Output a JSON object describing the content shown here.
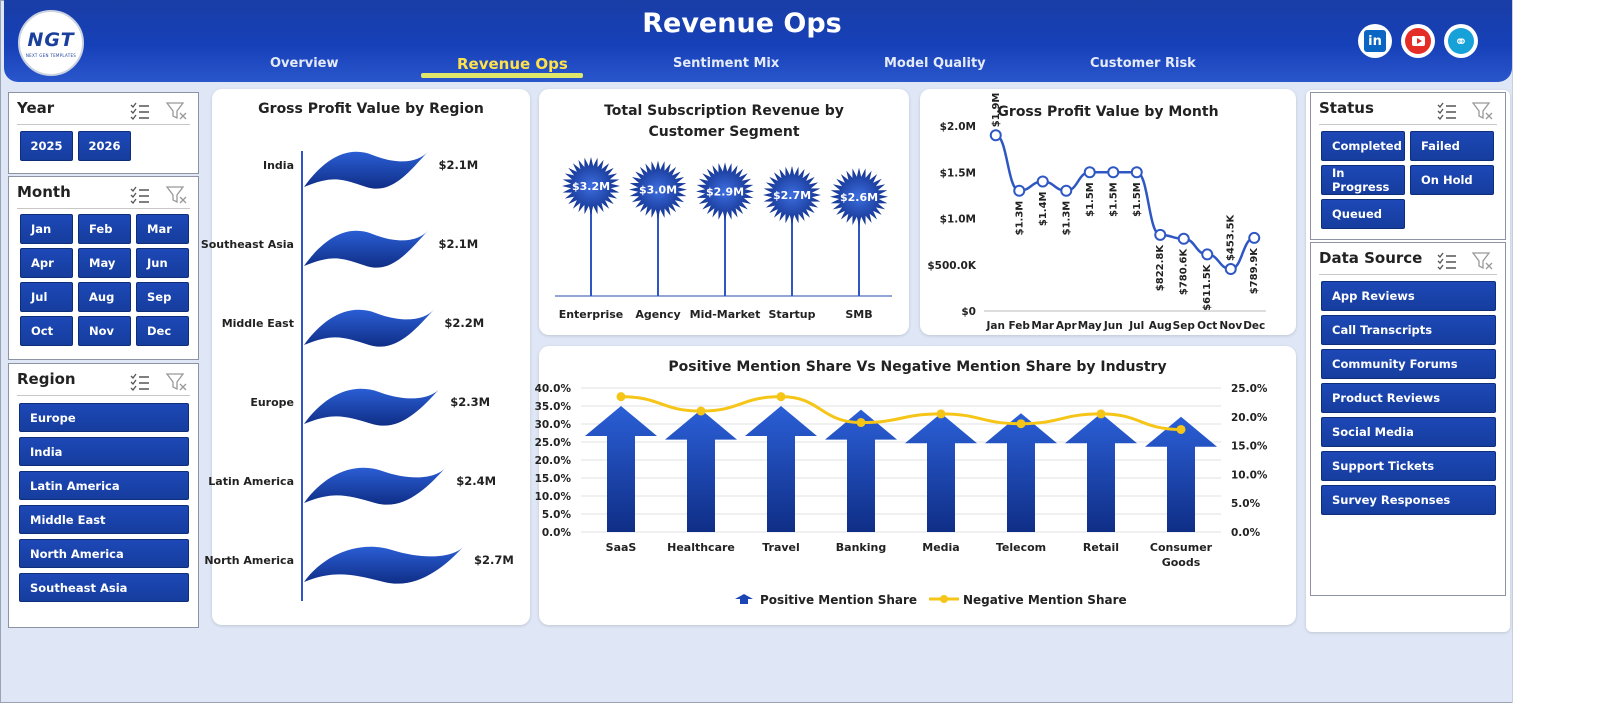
{
  "header": {
    "title": "Revenue Ops",
    "logo_text": "NGT",
    "logo_sub": "NEXT GEN TEMPLATES",
    "nav": [
      "Overview",
      "Revenue Ops",
      "Sentiment Mix",
      "Model Quality",
      "Customer Risk"
    ],
    "active_nav": "Revenue Ops",
    "social": [
      {
        "name": "linkedin-icon",
        "label": "in"
      },
      {
        "name": "youtube-icon"
      },
      {
        "name": "globe-icon"
      }
    ]
  },
  "slicers": {
    "year": {
      "title": "Year",
      "items": [
        "2025",
        "2026"
      ]
    },
    "month": {
      "title": "Month",
      "items": [
        "Jan",
        "Feb",
        "Mar",
        "Apr",
        "May",
        "Jun",
        "Jul",
        "Aug",
        "Sep",
        "Oct",
        "Nov",
        "Dec"
      ]
    },
    "region": {
      "title": "Region",
      "items": [
        "Europe",
        "India",
        "Latin America",
        "Middle East",
        "North America",
        "Southeast Asia"
      ]
    },
    "status": {
      "title": "Status",
      "items": [
        "Completed",
        "Failed",
        "In Progress",
        "On Hold",
        "Queued"
      ]
    },
    "data_source": {
      "title": "Data Source",
      "items": [
        "App Reviews",
        "Call Transcripts",
        "Community Forums",
        "Product Reviews",
        "Social Media",
        "Support Tickets",
        "Survey Responses"
      ]
    }
  },
  "colors": {
    "accent": "#1b45b4",
    "line": "#f5c518",
    "header": "#1a3ea6"
  },
  "chart_data": [
    {
      "id": "region",
      "type": "bar",
      "title": "Gross Profit Value by Region",
      "categories": [
        "India",
        "Southeast Asia",
        "Middle East",
        "Europe",
        "Latin America",
        "North America"
      ],
      "values": [
        2.1,
        2.1,
        2.2,
        2.3,
        2.4,
        2.7
      ],
      "labels": [
        "$2.1M",
        "$2.1M",
        "$2.2M",
        "$2.3M",
        "$2.4M",
        "$2.7M"
      ],
      "unit": "$M"
    },
    {
      "id": "segment",
      "type": "bar",
      "title": "Total Subscription Revenue by Customer Segment",
      "categories": [
        "Enterprise",
        "Agency",
        "Mid-Market",
        "Startup",
        "SMB"
      ],
      "values": [
        3.2,
        3.0,
        2.9,
        2.7,
        2.6
      ],
      "labels": [
        "$3.2M",
        "$3.0M",
        "$2.9M",
        "$2.7M",
        "$2.6M"
      ],
      "unit": "$M"
    },
    {
      "id": "month",
      "type": "line",
      "title": "Gross Profit Value by Month",
      "categories": [
        "Jan",
        "Feb",
        "Mar",
        "Apr",
        "May",
        "Jun",
        "Jul",
        "Aug",
        "Sep",
        "Oct",
        "Nov",
        "Dec"
      ],
      "values": [
        1.9,
        1.3,
        1.4,
        1.3,
        1.5,
        1.5,
        1.5,
        0.8229,
        0.7806,
        0.6115,
        0.4535,
        0.7899
      ],
      "labels": [
        "$1.9M",
        "$1.3M",
        "$1.4M",
        "$1.3M",
        "$1.5M",
        "$1.5M",
        "$1.5M",
        "$822.8K",
        "$780.6K",
        "$611.5K",
        "$453.5K",
        "$789.9K"
      ],
      "y_ticks": [
        "$0",
        "$500.0K",
        "$1.0M",
        "$1.5M",
        "$2.0M"
      ],
      "ylim": [
        0,
        2.0
      ],
      "unit": "$M"
    },
    {
      "id": "industry",
      "type": "bar",
      "title": "Positive Mention Share Vs Negative Mention Share by Industry",
      "categories": [
        "SaaS",
        "Healthcare",
        "Travel",
        "Banking",
        "Media",
        "Telecom",
        "Retail",
        "Consumer Goods"
      ],
      "series": [
        {
          "name": "Positive Mention Share",
          "type": "bar",
          "axis": "left",
          "values": [
            35.0,
            34.0,
            35.0,
            34.0,
            33.0,
            33.0,
            33.0,
            32.0
          ]
        },
        {
          "name": "Negative Mention Share",
          "type": "line",
          "axis": "right",
          "values": [
            23.5,
            21.0,
            23.5,
            19.0,
            20.5,
            18.8,
            20.5,
            17.8
          ]
        }
      ],
      "left_ticks": [
        "0.0%",
        "5.0%",
        "10.0%",
        "15.0%",
        "20.0%",
        "25.0%",
        "30.0%",
        "35.0%",
        "40.0%"
      ],
      "right_ticks": [
        "0.0%",
        "5.0%",
        "10.0%",
        "15.0%",
        "20.0%",
        "25.0%"
      ],
      "left_lim": [
        0,
        40
      ],
      "right_lim": [
        0,
        25
      ],
      "legend": "bottom"
    }
  ]
}
